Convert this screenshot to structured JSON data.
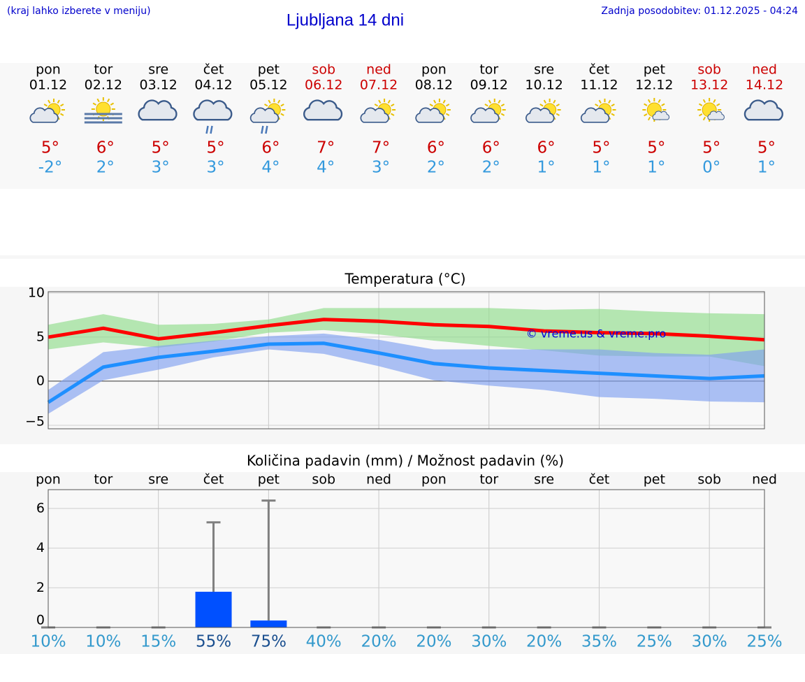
{
  "header": {
    "hint": "(kraj lahko izberete v meniju)",
    "title": "Ljubljana 14 dni",
    "updated": "Zadnja posodobitev: 01.12.2025 - 04:24"
  },
  "forecast": {
    "days": [
      "pon",
      "tor",
      "sre",
      "čet",
      "pet",
      "sob",
      "ned",
      "pon",
      "tor",
      "sre",
      "čet",
      "pet",
      "sob",
      "ned"
    ],
    "dates": [
      "01.12",
      "02.12",
      "03.12",
      "04.12",
      "05.12",
      "06.12",
      "07.12",
      "08.12",
      "09.12",
      "10.12",
      "11.12",
      "12.12",
      "13.12",
      "14.12"
    ],
    "day_colors": [
      "#000000",
      "#000000",
      "#000000",
      "#000000",
      "#000000",
      "#cc0000",
      "#cc0000",
      "#000000",
      "#000000",
      "#000000",
      "#000000",
      "#000000",
      "#cc0000",
      "#cc0000"
    ],
    "highs": [
      "5°",
      "6°",
      "5°",
      "5°",
      "6°",
      "7°",
      "7°",
      "6°",
      "6°",
      "6°",
      "5°",
      "5°",
      "5°",
      "5°"
    ],
    "lows": [
      "-2°",
      "2°",
      "3°",
      "3°",
      "4°",
      "4°",
      "3°",
      "2°",
      "2°",
      "1°",
      "1°",
      "1°",
      "0°",
      "1°"
    ],
    "high_color": "#cc0000",
    "low_color": "#3399dd"
  },
  "chart_data": [
    {
      "type": "line",
      "title": "Temperatura (°C)",
      "ylim": [
        -5.4,
        10.15
      ],
      "yticks": [
        {
          "value": -5,
          "label": "−5"
        },
        0,
        5,
        10
      ],
      "grid": true,
      "bands": [
        {
          "color": "#8fdc8a",
          "high": [
            6.4,
            7.6,
            6.4,
            6.5,
            7.0,
            8.3,
            8.3,
            8.3,
            8.3,
            8.1,
            8.2,
            7.9,
            7.7,
            7.6
          ],
          "low": [
            3.6,
            4.4,
            3.8,
            4.5,
            5.5,
            5.8,
            5.3,
            4.6,
            4.0,
            3.5,
            2.9,
            2.8,
            2.8,
            1.7
          ]
        },
        {
          "color": "#7f9ff0",
          "high": [
            -1.0,
            3.3,
            4.0,
            4.6,
            5.1,
            5.4,
            4.7,
            3.6,
            3.6,
            3.6,
            3.6,
            3.2,
            3.0,
            3.6
          ],
          "low": [
            -3.7,
            0.1,
            1.3,
            2.7,
            3.6,
            3.1,
            1.7,
            0.1,
            -0.5,
            -1.0,
            -1.8,
            -2.0,
            -2.3,
            -2.4
          ]
        }
      ],
      "series": [
        {
          "color": "#ff0000",
          "values": [
            5.0,
            6.0,
            4.8,
            5.5,
            6.3,
            7.0,
            6.8,
            6.4,
            6.2,
            5.7,
            5.5,
            5.4,
            5.1,
            4.7
          ]
        },
        {
          "color": "#1e8fff",
          "values": [
            -2.4,
            1.6,
            2.7,
            3.4,
            4.2,
            4.3,
            3.2,
            2.0,
            1.5,
            1.2,
            0.9,
            0.6,
            0.3,
            0.6
          ]
        }
      ],
      "watermark": "© vreme.us & vreme.pro"
    },
    {
      "type": "bar",
      "title": "Količina padavin (mm) / Možnost padavin (%)",
      "categories": [
        "pon",
        "tor",
        "sre",
        "čet",
        "pet",
        "sob",
        "ned",
        "pon",
        "tor",
        "sre",
        "čet",
        "pet",
        "sob",
        "ned"
      ],
      "values": [
        0,
        0,
        0,
        1.8,
        0.35,
        0,
        0,
        0,
        0,
        0,
        0,
        0,
        0,
        0
      ],
      "max": [
        0,
        0,
        0,
        5.3,
        6.4,
        0,
        0,
        0,
        0,
        0,
        0,
        0,
        0,
        0
      ],
      "color": "#0050ff",
      "error_color": "#808080",
      "ylim": [
        0,
        6.95
      ],
      "yticks": [
        0,
        2,
        4,
        6
      ],
      "grid": true,
      "probability_labels": [
        "10%",
        "10%",
        "15%",
        "55%",
        "75%",
        "40%",
        "20%",
        "20%",
        "30%",
        "20%",
        "35%",
        "25%",
        "30%",
        "25%"
      ],
      "probability_color": "#3399cc",
      "wet_probability_color": "#1a4f8f"
    }
  ]
}
